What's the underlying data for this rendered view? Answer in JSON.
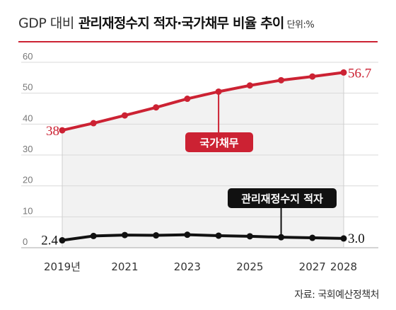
{
  "title": {
    "prefix": "GDP 대비",
    "main": "관리재정수지 적자·국가채무 비율 추이",
    "unit": "단위:%"
  },
  "source": "자료: 국회예산정책처",
  "colors": {
    "debt": "#cc2233",
    "deficit": "#111111",
    "grid": "#d9d9d9",
    "area": "#f2f2f2",
    "axis_text": "#777777"
  },
  "chart_data": {
    "type": "line",
    "title": "관리재정수지 적자·국가채무 비율 추이",
    "x": [
      2019,
      2020,
      2021,
      2022,
      2023,
      2024,
      2025,
      2026,
      2027,
      2028
    ],
    "x_tick_labels": [
      {
        "x": 2019,
        "label": "2019년"
      },
      {
        "x": 2021,
        "label": "2021"
      },
      {
        "x": 2023,
        "label": "2023"
      },
      {
        "x": 2025,
        "label": "2025"
      },
      {
        "x": 2027,
        "label": "2027"
      },
      {
        "x": 2028,
        "label": "2028"
      }
    ],
    "y_ticks": [
      0,
      10,
      20,
      30,
      40,
      50,
      60
    ],
    "ylim": [
      0,
      60
    ],
    "xlim": [
      2019,
      2028
    ],
    "grid": true,
    "series": [
      {
        "name": "국가채무",
        "values": [
          38,
          40.3,
          42.8,
          45.4,
          48.2,
          50.5,
          52.5,
          54.2,
          55.4,
          56.7
        ],
        "labels": [
          {
            "x": 2019,
            "text": "38"
          },
          {
            "x": 2028,
            "text": "56.7"
          }
        ],
        "callout_x": 2024
      },
      {
        "name": "관리재정수지 적자",
        "values": [
          2.4,
          3.8,
          4.1,
          4.0,
          4.2,
          3.9,
          3.7,
          3.4,
          3.2,
          3.0
        ],
        "labels": [
          {
            "x": 2019,
            "text": "2.4"
          },
          {
            "x": 2028,
            "text": "3.0"
          }
        ],
        "callout_x": 2026
      }
    ]
  }
}
